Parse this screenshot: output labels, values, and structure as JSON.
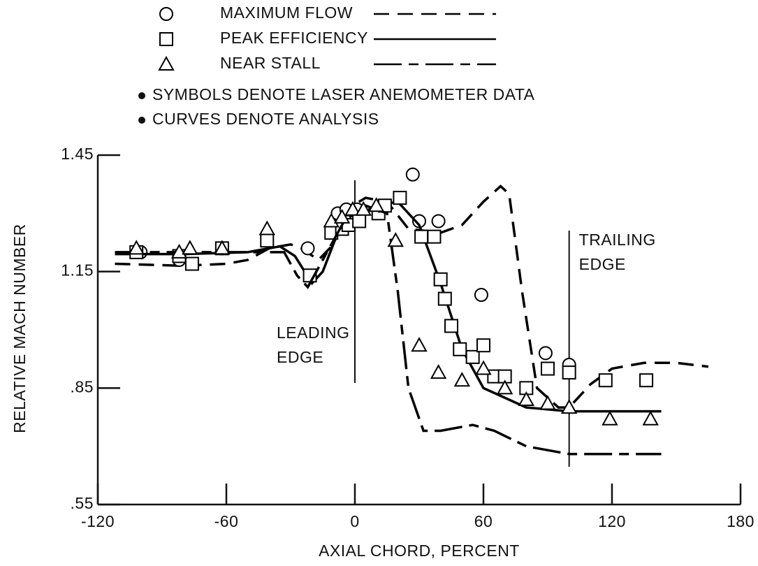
{
  "chart_data": {
    "type": "scatter",
    "xlabel": "AXIAL CHORD, PERCENT",
    "ylabel": "RELATIVE MACH NUMBER",
    "notes": [
      "SYMBOLS DENOTE LASER ANEMOMETER DATA",
      "CURVES DENOTE ANALYSIS"
    ],
    "annotations": [
      {
        "lines": [
          "LEADING",
          "EDGE"
        ],
        "x": 0
      },
      {
        "lines": [
          "TRAILING",
          "EDGE"
        ],
        "x": 100
      }
    ],
    "xlim": [
      -120,
      180
    ],
    "xticks": [
      -120,
      -60,
      0,
      60,
      120,
      180
    ],
    "ylim": [
      0.55,
      1.45
    ],
    "yticks": [
      {
        "value": 0.55,
        "label": ".55"
      },
      {
        "value": 0.85,
        "label": ".85"
      },
      1.15,
      1.45
    ],
    "series": [
      {
        "name": "MAXIMUM FLOW",
        "marker": "circle",
        "dash": "22,12",
        "color": "#000000",
        "x": [
          -100,
          -82,
          -62,
          -22,
          -8,
          -4,
          1,
          27,
          30,
          39,
          59,
          89,
          100
        ],
        "values": [
          1.2,
          1.18,
          1.21,
          1.21,
          1.3,
          1.31,
          1.31,
          1.4,
          1.28,
          1.28,
          1.09,
          0.94,
          0.91
        ],
        "curve_x": [
          -112,
          -80,
          -60,
          -50,
          -40,
          -30,
          -25,
          -17,
          -10,
          -4,
          5,
          15,
          25,
          40,
          50,
          60,
          68,
          72,
          78,
          85,
          95,
          100,
          110,
          120,
          135,
          150,
          165
        ],
        "curve_values": [
          1.17,
          1.165,
          1.17,
          1.18,
          1.21,
          1.22,
          1.21,
          1.18,
          1.22,
          1.31,
          1.34,
          1.33,
          1.26,
          1.25,
          1.27,
          1.33,
          1.37,
          1.35,
          1.1,
          0.85,
          0.8,
          0.8,
          0.86,
          0.9,
          0.915,
          0.915,
          0.905
        ]
      },
      {
        "name": "PEAK EFFICIENCY",
        "marker": "square",
        "dash": "none",
        "color": "#000000",
        "x": [
          -102,
          -82,
          -76,
          -62,
          -41,
          -21,
          -11,
          -6,
          -3,
          2,
          11,
          14,
          21,
          31,
          37,
          40,
          42,
          45,
          49,
          55,
          60,
          65,
          70,
          80,
          90,
          100,
          117,
          136
        ],
        "values": [
          1.2,
          1.19,
          1.17,
          1.21,
          1.23,
          1.14,
          1.25,
          1.26,
          1.27,
          1.28,
          1.3,
          1.32,
          1.34,
          1.24,
          1.24,
          1.13,
          1.08,
          1.01,
          0.95,
          0.93,
          0.96,
          0.88,
          0.88,
          0.85,
          0.9,
          0.89,
          0.87,
          0.87
        ],
        "curve_x": [
          -112,
          -80,
          -50,
          -35,
          -28,
          -20,
          -15,
          -8,
          0,
          10,
          20,
          30,
          40,
          50,
          60,
          80,
          100,
          143
        ],
        "curve_values": [
          1.195,
          1.195,
          1.2,
          1.215,
          1.19,
          1.12,
          1.15,
          1.25,
          1.29,
          1.32,
          1.33,
          1.27,
          1.12,
          0.95,
          0.85,
          0.8,
          0.79,
          0.79
        ]
      },
      {
        "name": "NEAR STALL",
        "marker": "triangle",
        "dash": "40,10,14,10",
        "color": "#000000",
        "x": [
          -102,
          -82,
          -77,
          -62,
          -41,
          -11,
          -6,
          -1,
          4,
          10,
          19,
          30,
          39,
          50,
          60,
          70,
          80,
          90,
          100,
          119,
          138
        ],
        "values": [
          1.21,
          1.2,
          1.21,
          1.21,
          1.26,
          1.28,
          1.29,
          1.31,
          1.31,
          1.32,
          1.23,
          0.96,
          0.89,
          0.87,
          0.9,
          0.85,
          0.82,
          0.81,
          0.8,
          0.77,
          0.77
        ],
        "curve_x": [
          -112,
          -60,
          -40,
          -33,
          -27,
          -22,
          -15,
          -5,
          5,
          15,
          20,
          25,
          32,
          40,
          55,
          65,
          80,
          100,
          120,
          143
        ],
        "curve_values": [
          1.2,
          1.2,
          1.2,
          1.2,
          1.14,
          1.11,
          1.18,
          1.28,
          1.32,
          1.3,
          1.1,
          0.85,
          0.74,
          0.74,
          0.755,
          0.74,
          0.7,
          0.68,
          0.68,
          0.68
        ]
      }
    ]
  }
}
